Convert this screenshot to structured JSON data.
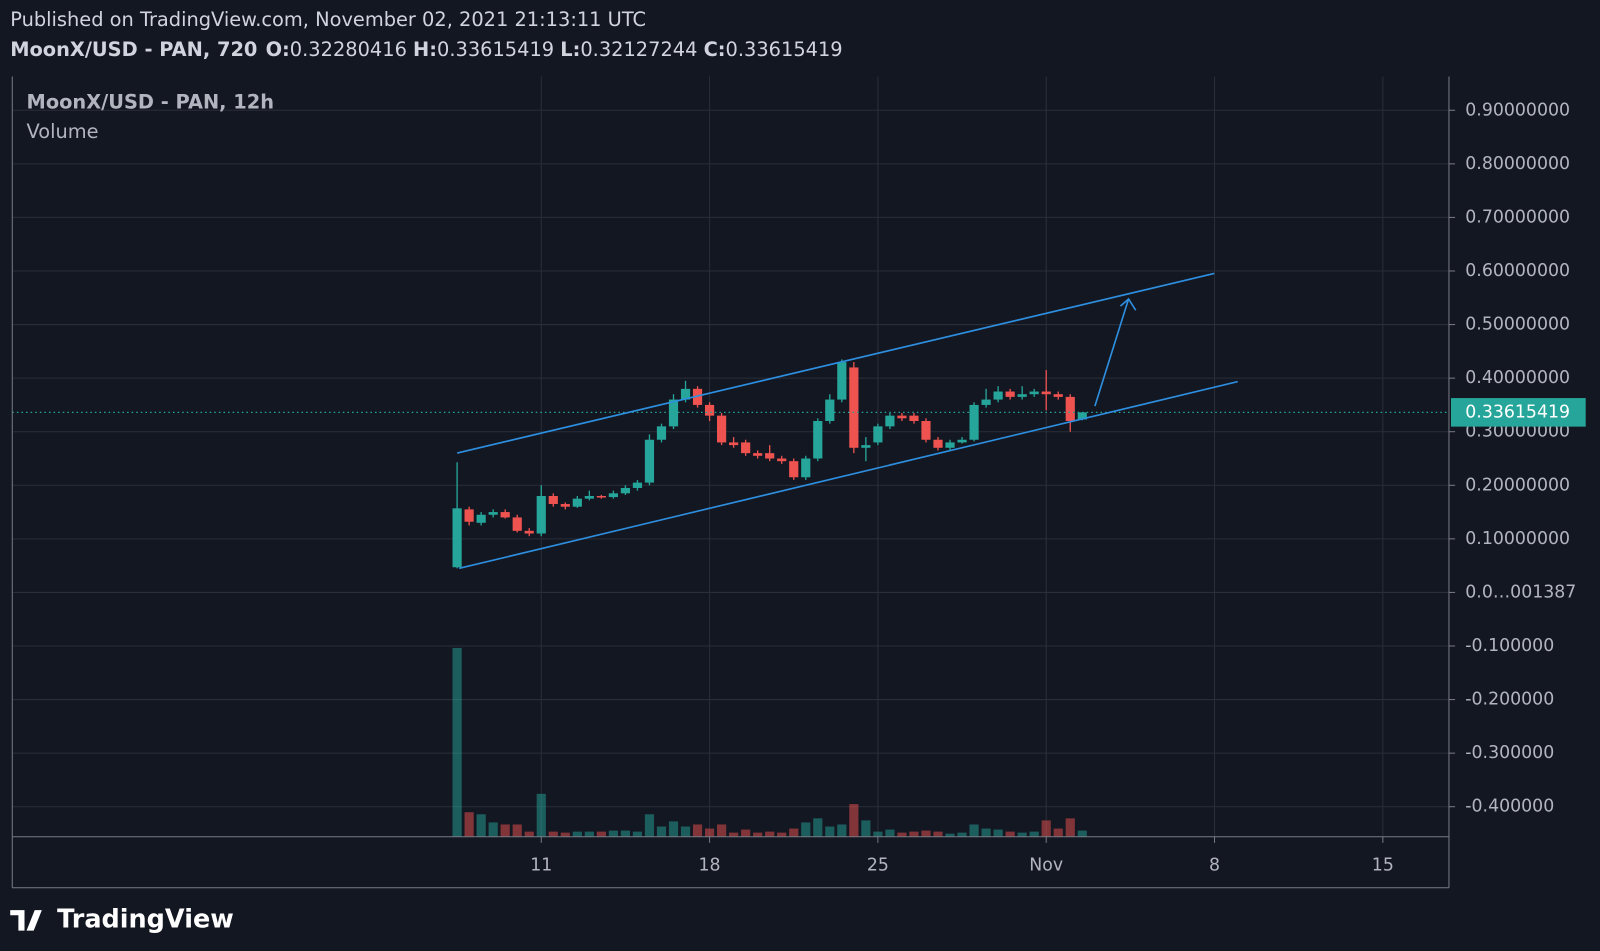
{
  "header": {
    "published": "Published on TradingView.com, November 02, 2021 21:13:11 UTC",
    "symbol": "MoonX/USD - PAN, 720",
    "ohlc_prefixes": [
      "O:",
      "H:",
      "L:",
      "C:"
    ]
  },
  "brand": "TradingView",
  "chart_data": {
    "type": "candlestick",
    "title": "MoonX/USD - PAN, 12h",
    "volume_label": "Volume",
    "x": [
      "2021-10-07 12:00",
      "2021-10-08 00:00",
      "2021-10-08 12:00",
      "2021-10-09 00:00",
      "2021-10-09 12:00",
      "2021-10-10 00:00",
      "2021-10-10 12:00",
      "2021-10-11 00:00",
      "2021-10-11 12:00",
      "2021-10-12 00:00",
      "2021-10-12 12:00",
      "2021-10-13 00:00",
      "2021-10-13 12:00",
      "2021-10-14 00:00",
      "2021-10-14 12:00",
      "2021-10-15 00:00",
      "2021-10-15 12:00",
      "2021-10-16 00:00",
      "2021-10-16 12:00",
      "2021-10-17 00:00",
      "2021-10-17 12:00",
      "2021-10-18 00:00",
      "2021-10-18 12:00",
      "2021-10-19 00:00",
      "2021-10-19 12:00",
      "2021-10-20 00:00",
      "2021-10-20 12:00",
      "2021-10-21 00:00",
      "2021-10-21 12:00",
      "2021-10-22 00:00",
      "2021-10-22 12:00",
      "2021-10-23 00:00",
      "2021-10-23 12:00",
      "2021-10-24 00:00",
      "2021-10-24 12:00",
      "2021-10-25 00:00",
      "2021-10-25 12:00",
      "2021-10-26 00:00",
      "2021-10-26 12:00",
      "2021-10-27 00:00",
      "2021-10-27 12:00",
      "2021-10-28 00:00",
      "2021-10-28 12:00",
      "2021-10-29 00:00",
      "2021-10-29 12:00",
      "2021-10-30 00:00",
      "2021-10-30 12:00",
      "2021-10-31 00:00",
      "2021-10-31 12:00",
      "2021-11-01 00:00",
      "2021-11-01 12:00",
      "2021-11-02 00:00",
      "2021-11-02 12:00"
    ],
    "open": [
      0.047,
      0.155,
      0.13,
      0.145,
      0.15,
      0.14,
      0.115,
      0.11,
      0.18,
      0.165,
      0.16,
      0.175,
      0.18,
      0.178,
      0.185,
      0.195,
      0.205,
      0.285,
      0.31,
      0.36,
      0.38,
      0.35,
      0.33,
      0.28,
      0.28,
      0.26,
      0.26,
      0.25,
      0.245,
      0.215,
      0.25,
      0.32,
      0.36,
      0.42,
      0.27,
      0.28,
      0.31,
      0.33,
      0.33,
      0.32,
      0.285,
      0.27,
      0.28,
      0.285,
      0.35,
      0.36,
      0.375,
      0.365,
      0.37,
      0.375,
      0.37,
      0.365,
      0.32280416
    ],
    "high": [
      0.243,
      0.16,
      0.15,
      0.155,
      0.155,
      0.145,
      0.12,
      0.2,
      0.185,
      0.168,
      0.18,
      0.19,
      0.182,
      0.19,
      0.2,
      0.21,
      0.295,
      0.315,
      0.37,
      0.395,
      0.385,
      0.355,
      0.335,
      0.29,
      0.285,
      0.265,
      0.275,
      0.255,
      0.25,
      0.255,
      0.325,
      0.37,
      0.435,
      0.43,
      0.29,
      0.315,
      0.335,
      0.335,
      0.335,
      0.325,
      0.29,
      0.285,
      0.29,
      0.355,
      0.38,
      0.385,
      0.38,
      0.385,
      0.38,
      0.415,
      0.375,
      0.37,
      0.33615419
    ],
    "low": [
      0.045,
      0.125,
      0.125,
      0.14,
      0.138,
      0.112,
      0.105,
      0.105,
      0.16,
      0.155,
      0.158,
      0.172,
      0.175,
      0.175,
      0.182,
      0.19,
      0.2,
      0.28,
      0.305,
      0.355,
      0.345,
      0.32,
      0.275,
      0.27,
      0.255,
      0.25,
      0.245,
      0.24,
      0.21,
      0.21,
      0.245,
      0.315,
      0.355,
      0.26,
      0.245,
      0.275,
      0.305,
      0.32,
      0.315,
      0.28,
      0.265,
      0.265,
      0.278,
      0.282,
      0.345,
      0.355,
      0.36,
      0.36,
      0.365,
      0.34,
      0.36,
      0.3,
      0.32127244
    ],
    "close": [
      0.157,
      0.132,
      0.145,
      0.15,
      0.14,
      0.115,
      0.11,
      0.18,
      0.165,
      0.16,
      0.175,
      0.18,
      0.178,
      0.185,
      0.195,
      0.205,
      0.285,
      0.31,
      0.36,
      0.38,
      0.35,
      0.33,
      0.28,
      0.275,
      0.26,
      0.255,
      0.25,
      0.245,
      0.215,
      0.25,
      0.32,
      0.36,
      0.43,
      0.27,
      0.275,
      0.31,
      0.33,
      0.325,
      0.32,
      0.285,
      0.27,
      0.28,
      0.285,
      0.35,
      0.36,
      0.375,
      0.365,
      0.37,
      0.375,
      0.37,
      0.365,
      0.32,
      0.33615419
    ],
    "volume": [
      185,
      24,
      22,
      14,
      12,
      12,
      5,
      42,
      5,
      4,
      5,
      5,
      5,
      6,
      6,
      5,
      22,
      10,
      15,
      10,
      12,
      8,
      12,
      4,
      7,
      4,
      5,
      4,
      8,
      14,
      18,
      10,
      12,
      32,
      16,
      5,
      7,
      4,
      5,
      6,
      5,
      3,
      4,
      12,
      8,
      7,
      5,
      4,
      5,
      16,
      8,
      18,
      6
    ],
    "up_color": "#26a69a",
    "down_color": "#ef5350",
    "last_price": 0.33615419,
    "xlim": [
      "2021-09-19 00:00",
      "2021-11-17 18:00"
    ],
    "xticks": [
      {
        "value": "2021-10-11 00:00",
        "label": "11"
      },
      {
        "value": "2021-10-18 00:00",
        "label": "18"
      },
      {
        "value": "2021-10-25 00:00",
        "label": "25"
      },
      {
        "value": "2021-11-01 00:00",
        "label": "Nov"
      },
      {
        "value": "2021-11-08 00:00",
        "label": "8"
      },
      {
        "value": "2021-11-15 00:00",
        "label": "15"
      }
    ],
    "ylim": [
      -0.456,
      0.963
    ],
    "yticks": [
      {
        "value": 0.9,
        "label": "0.90000000"
      },
      {
        "value": 0.8,
        "label": "0.80000000"
      },
      {
        "value": 0.7,
        "label": "0.70000000"
      },
      {
        "value": 0.6,
        "label": "0.60000000"
      },
      {
        "value": 0.5,
        "label": "0.50000000"
      },
      {
        "value": 0.4,
        "label": "0.40000000"
      },
      {
        "value": 0.3,
        "label": "0.30000000"
      },
      {
        "value": 0.2,
        "label": "0.20000000"
      },
      {
        "value": 0.1,
        "label": "0.10000000"
      },
      {
        "value": 0,
        "label": "0.0…001387"
      },
      {
        "value": -0.1,
        "label": "-0.100000"
      },
      {
        "value": -0.2,
        "label": "-0.200000"
      },
      {
        "value": -0.3,
        "label": "-0.300000"
      },
      {
        "value": -0.4,
        "label": "-0.400000"
      }
    ],
    "grid": true
  }
}
